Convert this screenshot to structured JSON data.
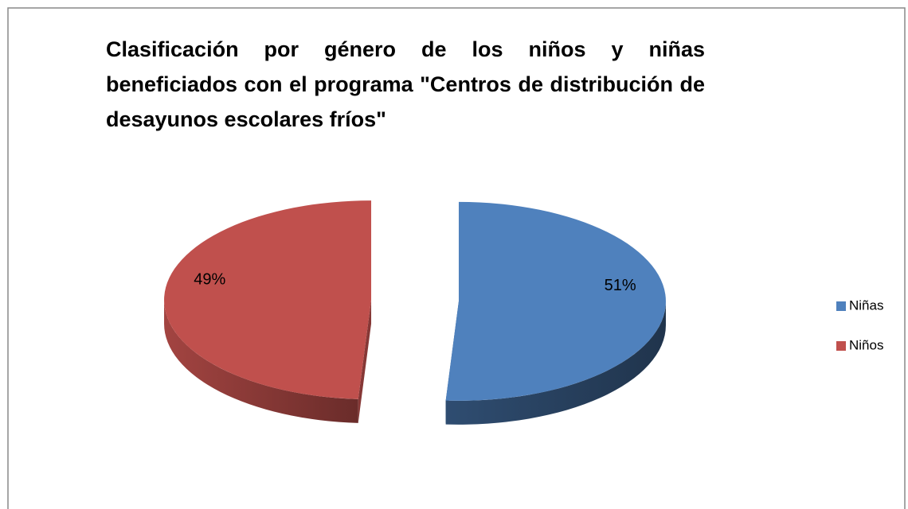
{
  "chart_data": {
    "type": "pie3d",
    "title": "Clasificación por género de los niños y niñas beneficiados con el programa \"Centros de distribución de desayunos escolares fríos\"",
    "categories": [
      "Niñas",
      "Niños"
    ],
    "values": [
      51,
      49
    ],
    "value_labels": [
      "51%",
      "49%"
    ],
    "colors": [
      "#4f81bd",
      "#c0504d"
    ],
    "legend": "right"
  }
}
